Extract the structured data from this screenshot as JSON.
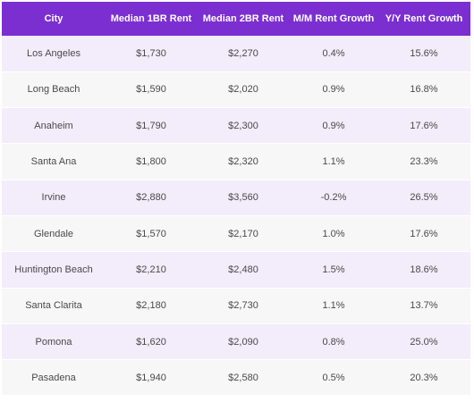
{
  "table": {
    "headers": [
      "City",
      "Median 1BR Rent",
      "Median 2BR Rent",
      "M/M Rent Growth",
      "Y/Y Rent Growth"
    ],
    "rows": [
      [
        "Los Angeles",
        "$1,730",
        "$2,270",
        "0.4%",
        "15.6%"
      ],
      [
        "Long Beach",
        "$1,590",
        "$2,020",
        "0.9%",
        "16.8%"
      ],
      [
        "Anaheim",
        "$1,790",
        "$2,300",
        "0.9%",
        "17.6%"
      ],
      [
        "Santa Ana",
        "$1,800",
        "$2,320",
        "1.1%",
        "23.3%"
      ],
      [
        "Irvine",
        "$2,880",
        "$3,560",
        "-0.2%",
        "26.5%"
      ],
      [
        "Glendale",
        "$1,570",
        "$2,170",
        "1.0%",
        "17.6%"
      ],
      [
        "Huntington Beach",
        "$2,210",
        "$2,480",
        "1.5%",
        "18.6%"
      ],
      [
        "Santa Clarita",
        "$2,180",
        "$2,730",
        "1.1%",
        "13.7%"
      ],
      [
        "Pomona",
        "$1,620",
        "$2,090",
        "0.8%",
        "25.0%"
      ],
      [
        "Pasadena",
        "$1,940",
        "$2,580",
        "0.5%",
        "20.3%"
      ]
    ]
  },
  "colors": {
    "header_bg": "#7b2fd1",
    "header_text": "#ffffff",
    "row_odd_bg": "#f2ecfb",
    "row_even_bg": "#f7f7f7",
    "cell_text": "#4a4a4a"
  }
}
